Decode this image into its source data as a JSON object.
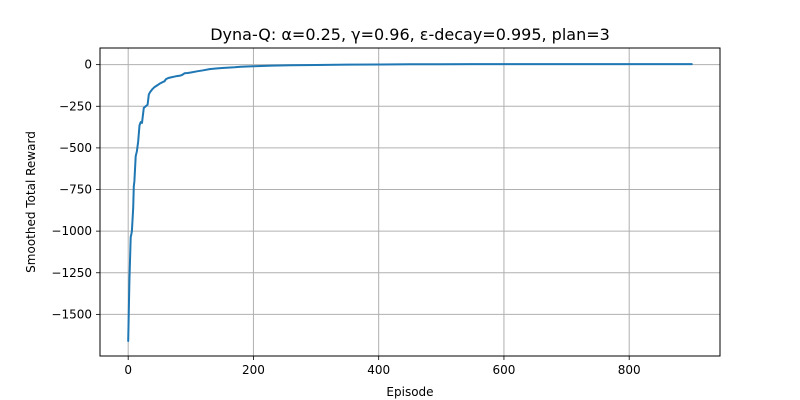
{
  "chart_data": {
    "type": "line",
    "title": "Dyna-Q: α=0.25, γ=0.96, ε-decay=0.995, plan=3",
    "xlabel": "Episode",
    "ylabel": "Smoothed Total Reward",
    "xlim": [
      -45,
      945
    ],
    "ylim": [
      -1750,
      100
    ],
    "xticks": [
      0,
      200,
      400,
      600,
      800
    ],
    "yticks": [
      0,
      -250,
      -500,
      -750,
      -1000,
      -1250,
      -1500
    ],
    "xtick_labels": [
      "0",
      "200",
      "400",
      "600",
      "800"
    ],
    "ytick_labels": [
      "0",
      "−250",
      "−500",
      "−750",
      "−1000",
      "−1250",
      "−1500"
    ],
    "grid": true,
    "color": "#1f77b4",
    "series": [
      {
        "x": [
          0,
          2,
          4,
          5,
          6,
          8,
          9,
          10,
          12,
          14,
          16,
          18,
          20,
          22,
          25,
          28,
          31,
          33,
          35,
          38,
          42,
          46,
          50,
          55,
          58,
          60,
          64,
          70,
          76,
          82,
          86,
          90,
          95,
          100,
          110,
          120,
          130,
          140,
          150,
          160,
          170,
          180,
          200,
          230,
          260,
          300,
          350,
          400,
          450,
          500,
          550,
          600,
          650,
          700,
          750,
          800,
          850,
          900
        ],
        "y": [
          -1660,
          -1300,
          -1035,
          -1020,
          -1000,
          -860,
          -730,
          -700,
          -550,
          -520,
          -460,
          -365,
          -345,
          -350,
          -260,
          -250,
          -240,
          -180,
          -165,
          -150,
          -135,
          -125,
          -115,
          -105,
          -100,
          -88,
          -80,
          -75,
          -70,
          -67,
          -62,
          -52,
          -50,
          -47,
          -40,
          -34,
          -27,
          -23,
          -20,
          -18,
          -16,
          -13,
          -10,
          -6,
          -4,
          -2,
          0,
          1,
          2,
          2,
          3,
          3,
          3,
          3,
          3,
          3,
          3,
          3
        ]
      }
    ]
  }
}
